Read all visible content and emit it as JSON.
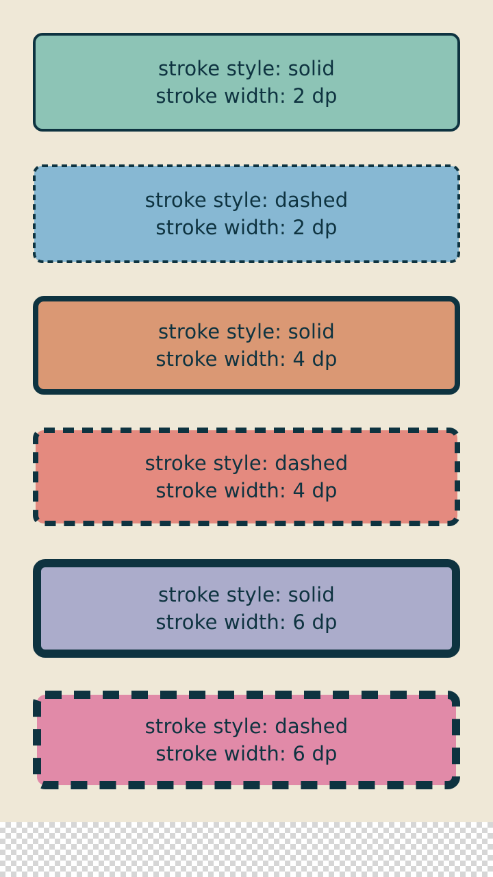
{
  "colors": {
    "background": "#efe8d7",
    "stroke": "#0e3340",
    "text": "#0e3340"
  },
  "cards": [
    {
      "style_label": "stroke style: solid",
      "width_label": "stroke width: 2 dp",
      "stroke_style": "solid",
      "stroke_width_dp": 2,
      "fill": "#8dc4b6"
    },
    {
      "style_label": "stroke style: dashed",
      "width_label": "stroke width: 2 dp",
      "stroke_style": "dashed",
      "stroke_width_dp": 2,
      "fill": "#87b8d3"
    },
    {
      "style_label": "stroke style: solid",
      "width_label": "stroke width: 4 dp",
      "stroke_style": "solid",
      "stroke_width_dp": 4,
      "fill": "#da9874"
    },
    {
      "style_label": "stroke style: dashed",
      "width_label": "stroke width: 4 dp",
      "stroke_style": "dashed",
      "stroke_width_dp": 4,
      "fill": "#e48a7f"
    },
    {
      "style_label": "stroke style: solid",
      "width_label": "stroke width: 6 dp",
      "stroke_style": "solid",
      "stroke_width_dp": 6,
      "fill": "#abaccb"
    },
    {
      "style_label": "stroke style: dashed",
      "width_label": "stroke width: 6 dp",
      "stroke_style": "dashed",
      "stroke_width_dp": 6,
      "fill": "#e18aa8"
    }
  ]
}
